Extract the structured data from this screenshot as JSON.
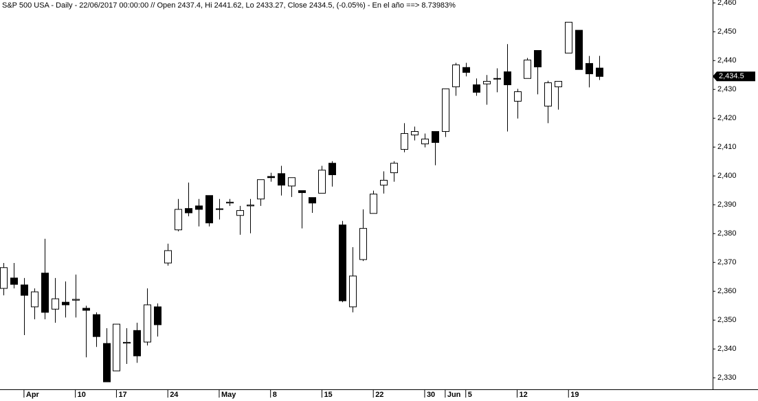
{
  "chart_data": {
    "type": "candlestick",
    "title": "S&P 500 USA - Daily - 22/06/2017 00:00:00 // Open 2437.4, Hi 2441.62, Lo 2433.27, Close 2434.5, (-0.05%) - En el año ==> 8.73983%",
    "categories": [
      null,
      null,
      "Apr",
      null,
      null,
      null,
      null,
      "10",
      null,
      null,
      null,
      "17",
      null,
      null,
      null,
      null,
      "24",
      null,
      null,
      null,
      null,
      "May",
      null,
      null,
      null,
      null,
      "8",
      null,
      null,
      null,
      null,
      "15",
      null,
      null,
      null,
      null,
      "22",
      null,
      null,
      null,
      null,
      "30",
      null,
      "Jun",
      null,
      "5",
      null,
      null,
      null,
      null,
      "12",
      null,
      null,
      null,
      null,
      "19",
      null,
      null,
      null
    ],
    "open": [
      2361.0,
      2364.6,
      2362.2,
      2354.6,
      2366.3,
      2353.8,
      2356.2,
      2356.9,
      2354.1,
      2351.9,
      2341.9,
      2332.4,
      2342.0,
      2346.4,
      2342.4,
      2354.6,
      2369.8,
      2381.3,
      2388.7,
      2389.6,
      2393.2,
      2388.6,
      2390.6,
      2386.3,
      2389.6,
      2392.0,
      2399.8,
      2400.8,
      2396.5,
      2394.9,
      2392.5,
      2394.0,
      2404.4,
      2383.0,
      2354.6,
      2371.0,
      2387.0,
      2396.8,
      2401.1,
      2409.2,
      2414.2,
      2411.1,
      2415.4,
      2415.4,
      2430.9,
      2437.6,
      2431.6,
      2431.9,
      2433.6,
      2436.1,
      2425.9,
      2433.8,
      2443.5,
      2424.2,
      2430.9,
      2442.6,
      2450.5,
      2439.0,
      2437.4
    ],
    "high": [
      2369.8,
      2369.8,
      2364.6,
      2361.0,
      2378.2,
      2364.6,
      2363.4,
      2365.8,
      2355.0,
      2352.7,
      2347.2,
      2348.6,
      2347.2,
      2349.1,
      2361.0,
      2355.8,
      2376.5,
      2392.0,
      2397.7,
      2392.0,
      2393.2,
      2392.0,
      2392.0,
      2389.6,
      2392.0,
      2398.7,
      2401.1,
      2403.5,
      2399.4,
      2394.9,
      2392.5,
      2403.5,
      2405.1,
      2384.4,
      2375.3,
      2388.4,
      2394.9,
      2401.6,
      2405.1,
      2418.3,
      2417.1,
      2414.7,
      2415.4,
      2430.2,
      2439.2,
      2439.2,
      2433.8,
      2435.0,
      2437.3,
      2445.7,
      2430.2,
      2440.9,
      2443.5,
      2433.0,
      2432.8,
      2453.3,
      2450.5,
      2441.6,
      2441.62
    ],
    "low": [
      2358.6,
      2361.0,
      2344.8,
      2350.3,
      2350.3,
      2349.1,
      2350.9,
      2350.9,
      2337.1,
      2340.7,
      2328.6,
      2332.4,
      2334.8,
      2335.2,
      2341.2,
      2344.3,
      2368.9,
      2380.8,
      2386.0,
      2382.5,
      2382.5,
      2384.9,
      2389.6,
      2379.6,
      2380.1,
      2389.6,
      2398.0,
      2393.2,
      2392.7,
      2381.8,
      2387.2,
      2394.0,
      2396.3,
      2356.2,
      2352.7,
      2370.5,
      2387.0,
      2393.9,
      2398.0,
      2408.2,
      2412.3,
      2409.9,
      2403.7,
      2413.5,
      2427.8,
      2434.5,
      2427.8,
      2424.7,
      2429.0,
      2415.4,
      2419.9,
      2433.8,
      2428.3,
      2418.3,
      2423.0,
      2442.6,
      2436.9,
      2430.7,
      2433.27
    ],
    "close": [
      2368.2,
      2362.4,
      2358.6,
      2359.8,
      2352.7,
      2357.4,
      2355.3,
      2357.2,
      2353.4,
      2344.3,
      2328.6,
      2348.6,
      2342.3,
      2337.6,
      2355.3,
      2348.4,
      2374.1,
      2388.4,
      2387.2,
      2388.4,
      2383.7,
      2388.4,
      2390.9,
      2388.0,
      2389.9,
      2398.7,
      2399.4,
      2396.8,
      2399.4,
      2394.2,
      2390.6,
      2402.0,
      2400.4,
      2356.7,
      2365.3,
      2381.8,
      2393.7,
      2398.5,
      2404.4,
      2414.7,
      2415.4,
      2412.8,
      2411.6,
      2430.2,
      2438.5,
      2435.9,
      2429.0,
      2432.8,
      2433.8,
      2431.6,
      2429.2,
      2440.2,
      2437.8,
      2432.3,
      2432.8,
      2453.3,
      2436.9,
      2435.4,
      2434.5
    ],
    "up_color": "#ffffff",
    "down_color": "#000000",
    "ylim": [
      2326,
      2461
    ],
    "yticks": [
      {
        "value": 2330,
        "label": "2,330"
      },
      {
        "value": 2340,
        "label": "2,340"
      },
      {
        "value": 2350,
        "label": "2,350"
      },
      {
        "value": 2360,
        "label": "2,360"
      },
      {
        "value": 2370,
        "label": "2,370"
      },
      {
        "value": 2380,
        "label": "2,380"
      },
      {
        "value": 2390,
        "label": "2,390"
      },
      {
        "value": 2400,
        "label": "2,400"
      },
      {
        "value": 2410,
        "label": "2,410"
      },
      {
        "value": 2420,
        "label": "2,420"
      },
      {
        "value": 2430,
        "label": "2,430"
      },
      {
        "value": 2440,
        "label": "2,440"
      },
      {
        "value": 2450,
        "label": "2,450"
      },
      {
        "value": 2460,
        "label": "2,460"
      }
    ],
    "last_price": {
      "value": 2434.5,
      "label": "2,434.5"
    },
    "grid": false
  }
}
